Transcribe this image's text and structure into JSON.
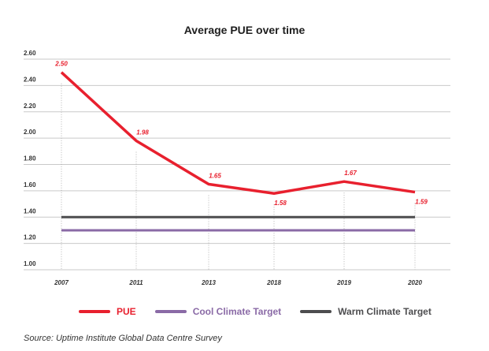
{
  "chart_data": {
    "type": "line",
    "title": "Average PUE over time",
    "categories": [
      "2007",
      "2011",
      "2013",
      "2018",
      "2019",
      "2020"
    ],
    "ylim": [
      1.0,
      2.6
    ],
    "yticks": [
      "2.60",
      "2.40",
      "2.20",
      "2.00",
      "1.80",
      "1.60",
      "1.40",
      "1.20",
      "1.00"
    ],
    "grid": true,
    "legend_position": "bottom",
    "series": [
      {
        "name": "PUE",
        "color": "#e8202e",
        "values": [
          2.5,
          1.98,
          1.65,
          1.58,
          1.67,
          1.59
        ],
        "labels": [
          "2.50",
          "1.98",
          "1.65",
          "1.58",
          "1.67",
          "1.59"
        ]
      },
      {
        "name": "Cool Climate Target",
        "color": "#8a6aa6",
        "values": [
          1.3,
          1.3,
          1.3,
          1.3,
          1.3,
          1.3
        ]
      },
      {
        "name": "Warm Climate Target",
        "color": "#4d4d4f",
        "values": [
          1.4,
          1.4,
          1.4,
          1.4,
          1.4,
          1.4
        ]
      }
    ],
    "source": "Source: Uptime Institute Global Data Centre Survey"
  }
}
